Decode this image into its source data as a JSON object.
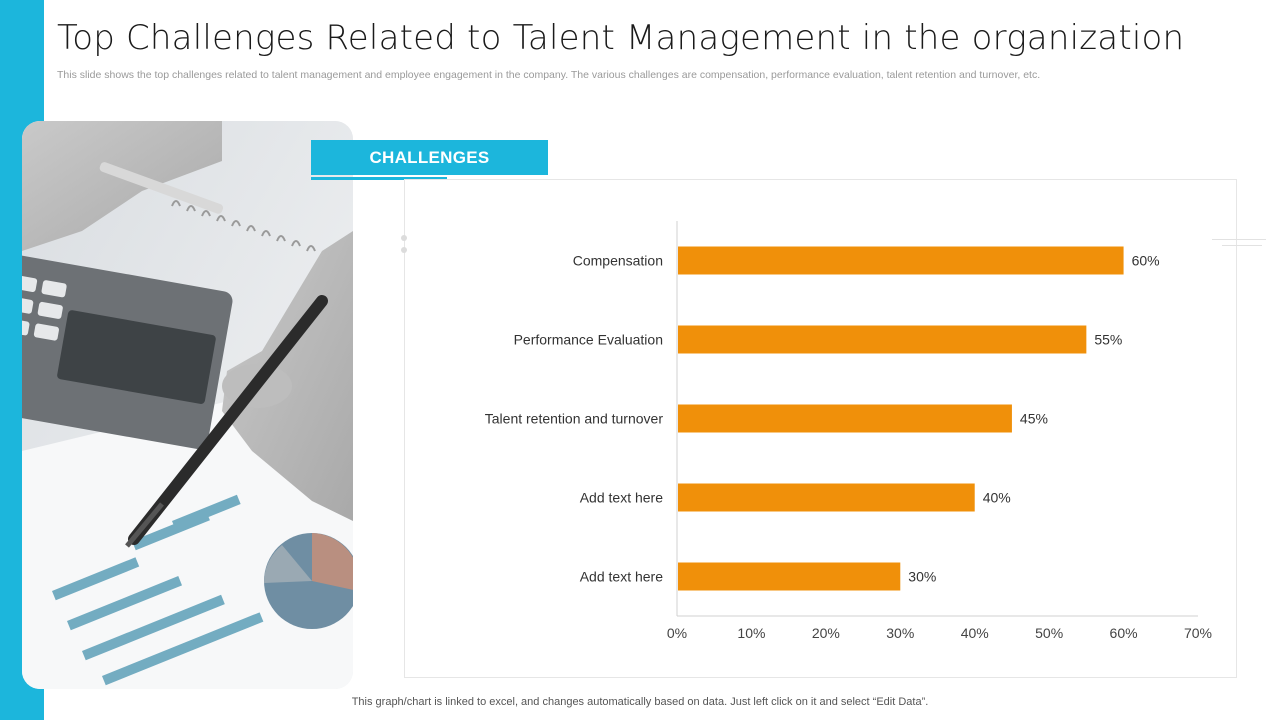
{
  "slide": {
    "title": "Top Challenges Related to Talent Management in the organization",
    "subtitle": "This slide shows the top challenges related to talent management and employee engagement in the company. The various challenges are compensation, performance evaluation, talent retention and turnover, etc.",
    "section_label": "CHALLENGES",
    "footer": "This graph/chart is linked to excel,  and changes automatically based on data. Just left click on it and select “Edit Data”.",
    "accent_color": "#1cb6dc"
  },
  "chart_data": {
    "type": "bar",
    "orientation": "horizontal",
    "categories": [
      "Compensation",
      "Performance Evaluation",
      "Talent retention and turnover",
      "Add text here",
      "Add text here"
    ],
    "values": [
      60,
      55,
      45,
      40,
      30
    ],
    "value_labels": [
      "60%",
      "55%",
      "45%",
      "40%",
      "30%"
    ],
    "xlim": [
      0,
      70
    ],
    "x_ticks": [
      "0%",
      "10%",
      "20%",
      "30%",
      "40%",
      "50%",
      "60%",
      "70%"
    ],
    "bar_color": "#f0900a",
    "grid": false,
    "legend": "none"
  }
}
